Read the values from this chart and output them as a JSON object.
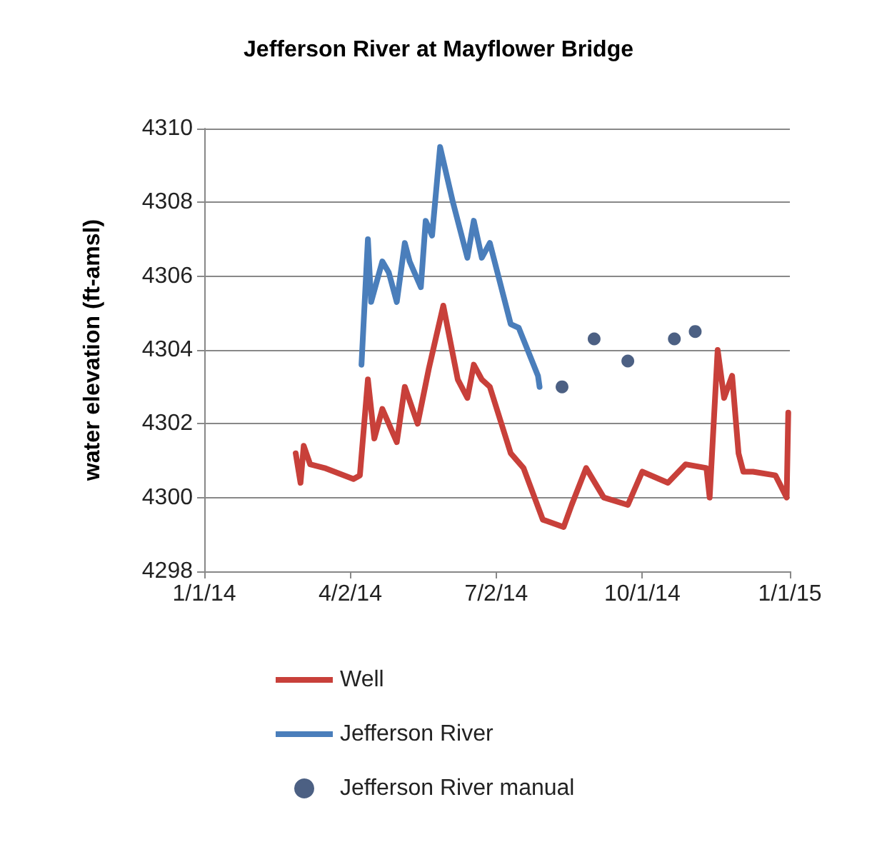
{
  "chart_data": {
    "type": "line",
    "title": "Jefferson River at Mayflower Bridge",
    "ylabel": "water elevation (ft-amsl)",
    "xlim": [
      "2014-01-01",
      "2015-01-01"
    ],
    "xticks": [
      {
        "value": "2014-01-01",
        "label": "1/1/14"
      },
      {
        "value": "2014-04-02",
        "label": "4/2/14"
      },
      {
        "value": "2014-07-02",
        "label": "7/2/14"
      },
      {
        "value": "2014-10-01",
        "label": "10/1/14"
      },
      {
        "value": "2015-01-01",
        "label": "1/1/15"
      }
    ],
    "ylim": [
      4298,
      4310
    ],
    "yticks": [
      4298,
      4300,
      4302,
      4304,
      4306,
      4308,
      4310
    ],
    "grid": "y",
    "legend": "bottom",
    "line_style": "solid",
    "series": [
      {
        "name": "Well",
        "marker": "none",
        "color": "#c8403a",
        "x": [
          "2014-02-27",
          "2014-03-02",
          "2014-03-04",
          "2014-03-08",
          "2014-03-17",
          "2014-04-04",
          "2014-04-08",
          "2014-04-13",
          "2014-04-17",
          "2014-04-22",
          "2014-05-01",
          "2014-05-06",
          "2014-05-14",
          "2014-05-21",
          "2014-05-30",
          "2014-06-08",
          "2014-06-14",
          "2014-06-18",
          "2014-06-23",
          "2014-06-28",
          "2014-07-11",
          "2014-07-19",
          "2014-07-31",
          "2014-08-13",
          "2014-08-18",
          "2014-08-27",
          "2014-09-07",
          "2014-09-22",
          "2014-10-01",
          "2014-10-17",
          "2014-10-28",
          "2014-11-10",
          "2014-11-12",
          "2014-11-17",
          "2014-11-21",
          "2014-11-26",
          "2014-11-30",
          "2014-12-03",
          "2014-12-09",
          "2014-12-23",
          "2014-12-30",
          "2014-12-31"
        ],
        "values": [
          4301.2,
          4300.4,
          4301.4,
          4300.9,
          4300.8,
          4300.5,
          4300.6,
          4303.2,
          4301.6,
          4302.4,
          4301.5,
          4303.0,
          4302.0,
          4303.5,
          4305.2,
          4303.2,
          4302.7,
          4303.6,
          4303.2,
          4303.0,
          4301.2,
          4300.8,
          4299.4,
          4299.2,
          4299.8,
          4300.8,
          4300.0,
          4299.8,
          4300.7,
          4300.4,
          4300.9,
          4300.8,
          4300.0,
          4304.0,
          4302.7,
          4303.3,
          4301.2,
          4300.7,
          4300.7,
          4300.6,
          4300.0,
          4302.3
        ]
      },
      {
        "name": "Jefferson River",
        "marker": "none",
        "color": "#4a7ebb",
        "x": [
          "2014-04-09",
          "2014-04-13",
          "2014-04-15",
          "2014-04-22",
          "2014-04-26",
          "2014-05-01",
          "2014-05-06",
          "2014-05-09",
          "2014-05-16",
          "2014-05-19",
          "2014-05-23",
          "2014-05-28",
          "2014-06-05",
          "2014-06-14",
          "2014-06-18",
          "2014-06-23",
          "2014-06-28",
          "2014-07-11",
          "2014-07-16",
          "2014-07-28",
          "2014-07-29"
        ],
        "values": [
          4303.6,
          4307.0,
          4305.3,
          4306.4,
          4306.1,
          4305.3,
          4306.9,
          4306.4,
          4305.7,
          4307.5,
          4307.1,
          4309.5,
          4308.0,
          4306.5,
          4307.5,
          4306.5,
          4306.9,
          4304.7,
          4304.6,
          4303.3,
          4303.0
        ]
      },
      {
        "name": "Jefferson River manual",
        "type": "scatter",
        "marker": "circle",
        "color": "#1f3864",
        "x": [
          "2014-08-12",
          "2014-09-01",
          "2014-09-22",
          "2014-10-21",
          "2014-11-03"
        ],
        "values": [
          4303.0,
          4304.3,
          4303.7,
          4304.3,
          4304.5
        ]
      }
    ]
  }
}
